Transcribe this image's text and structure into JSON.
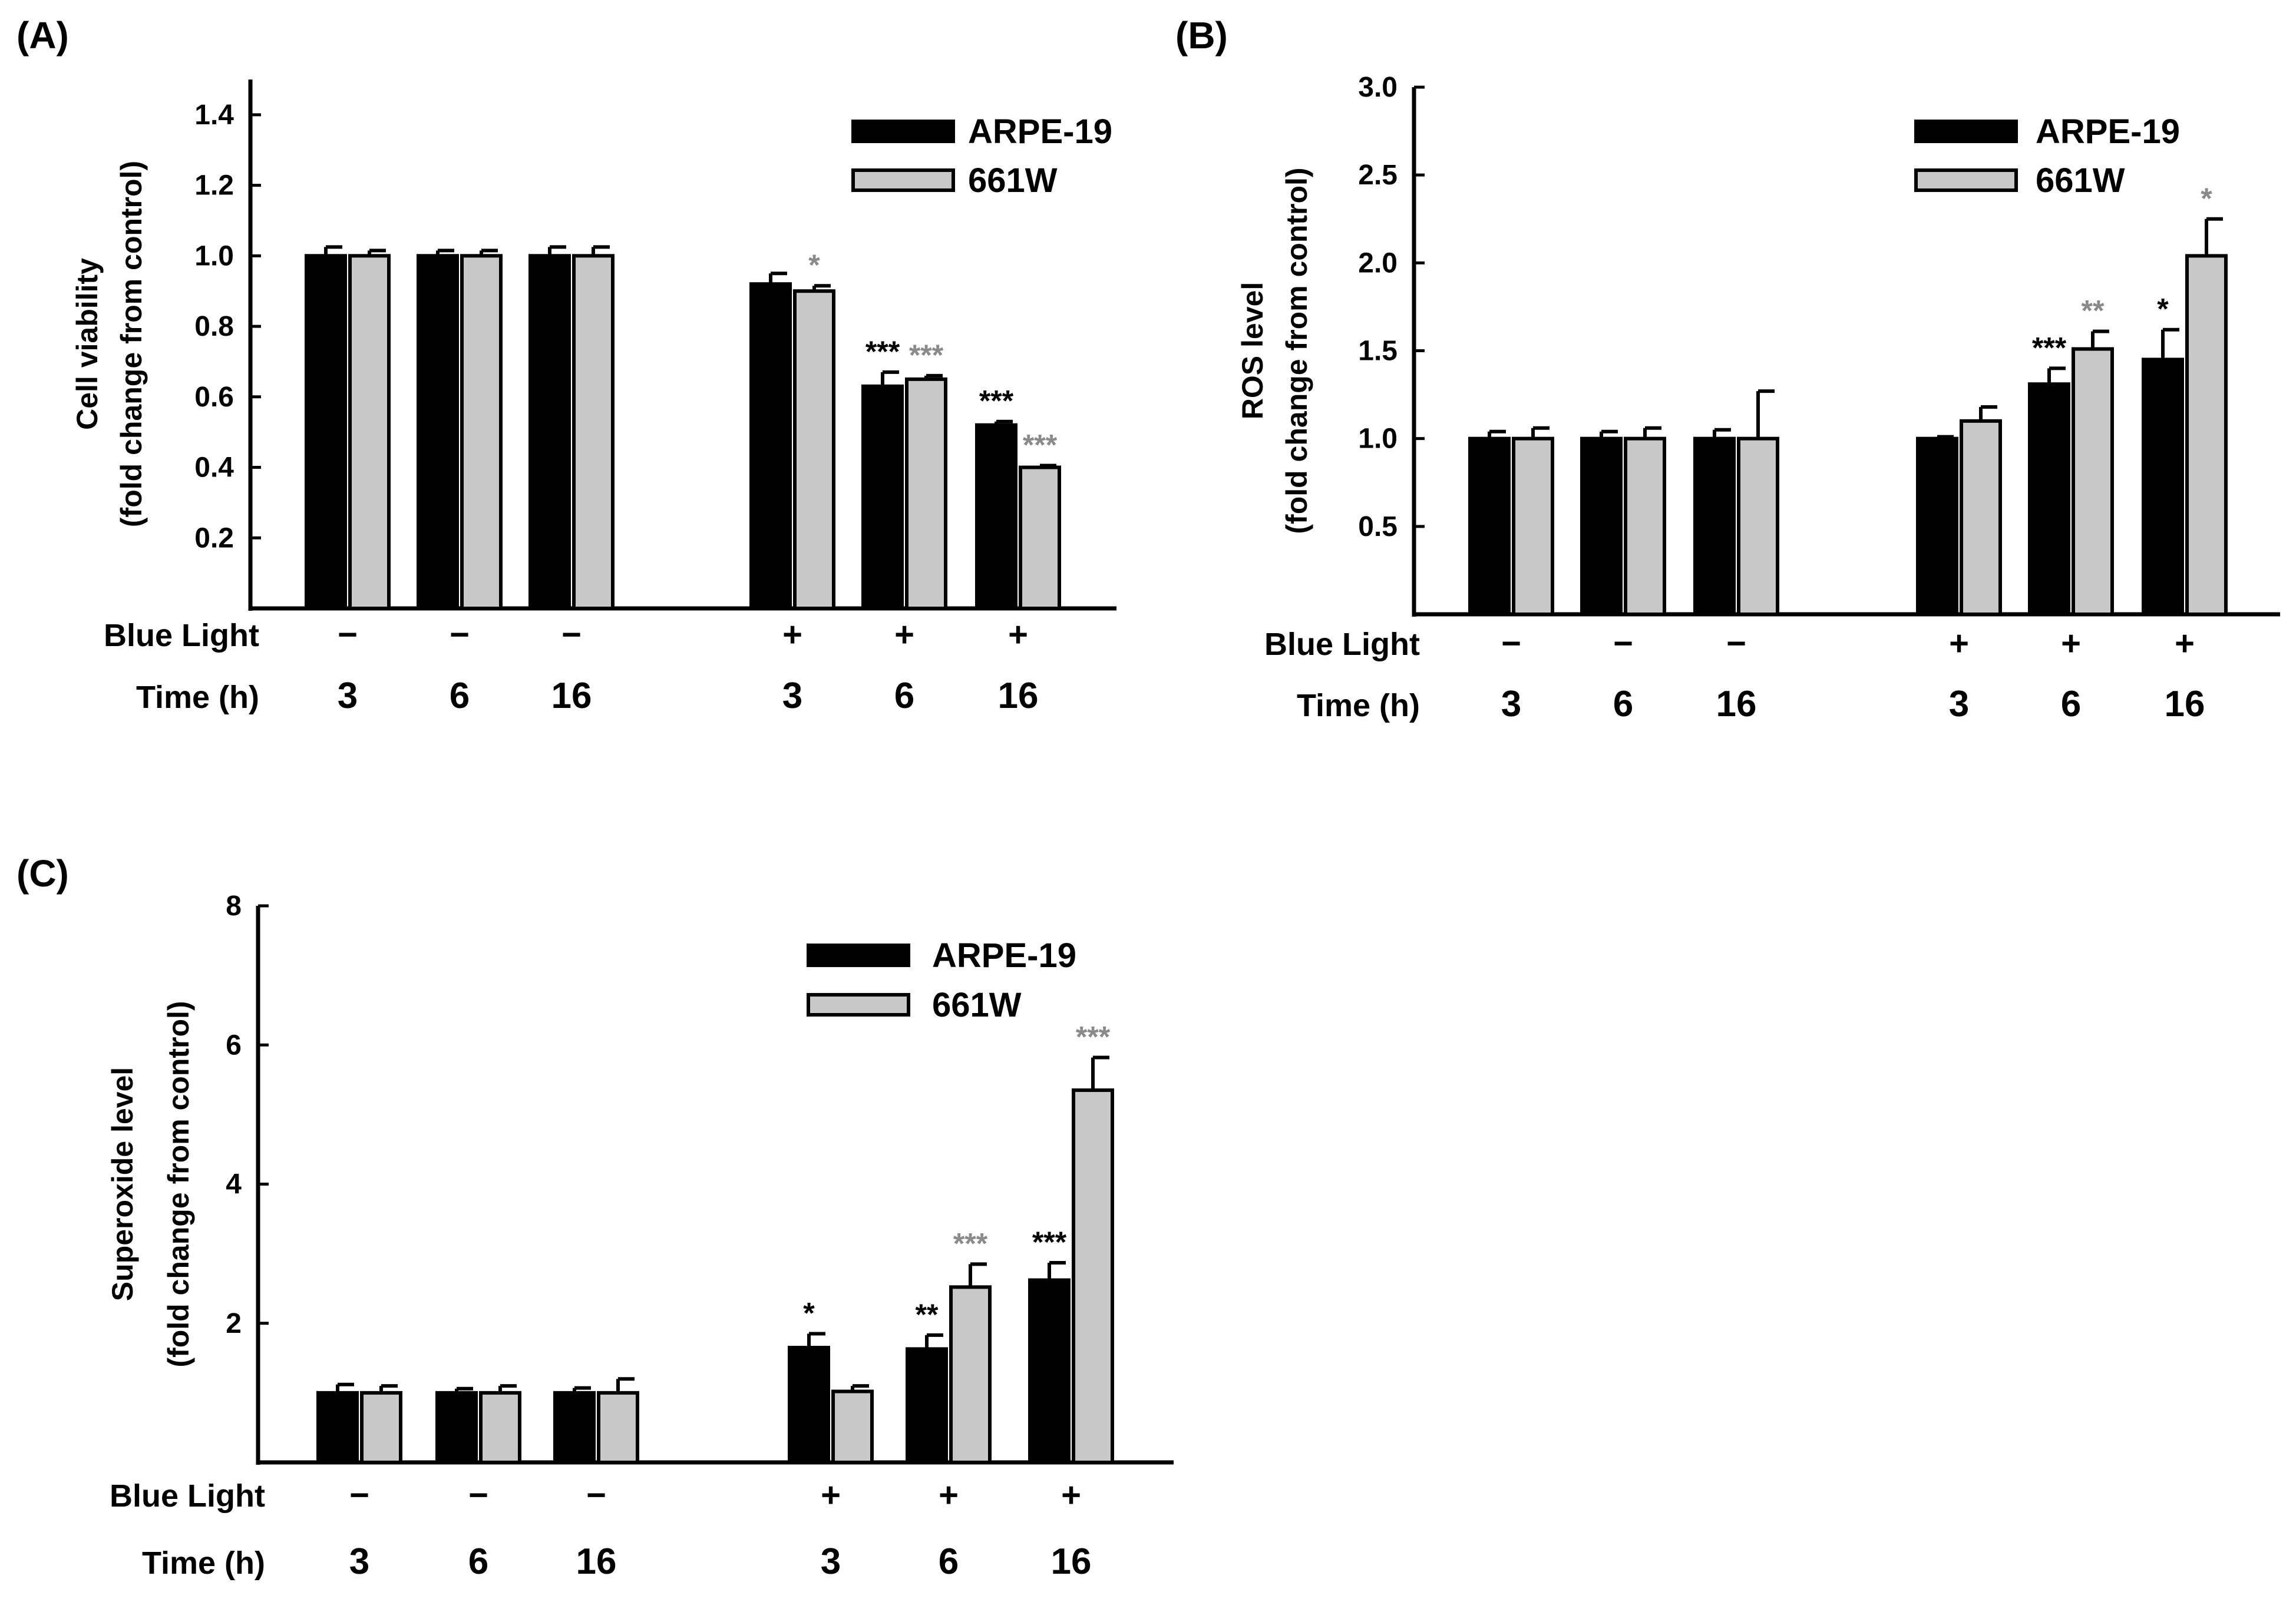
{
  "colors": {
    "arpe": "#000000",
    "w661": "#c8c8c8",
    "sig_arpe": "#000000",
    "sig_661w": "#8a8a8a",
    "axis": "#000000"
  },
  "chart_data": [
    {
      "id": "A",
      "panel_label": "(A)",
      "type": "bar",
      "ylabel_line1": "Cell viability",
      "ylabel_line2": "(fold change from control)",
      "ylim": [
        0,
        1.5
      ],
      "yticks": [
        0.2,
        0.4,
        0.6,
        0.8,
        1.0,
        1.2,
        1.4
      ],
      "ytick_labels": [
        "0.2",
        "0.4",
        "0.6",
        "0.8",
        "1.0",
        "1.2",
        "1.4"
      ],
      "legend": [
        "ARPE-19",
        "661W"
      ],
      "row_labels": [
        "Blue Light",
        "Time (h)"
      ],
      "blue_light": [
        "−",
        "−",
        "−",
        "+",
        "+",
        "+"
      ],
      "time": [
        "3",
        "6",
        "16",
        "3",
        "6",
        "16"
      ],
      "series": [
        {
          "name": "ARPE-19",
          "values": [
            1.0,
            1.0,
            1.0,
            0.92,
            0.63,
            0.52
          ],
          "errors": [
            0.025,
            0.015,
            0.025,
            0.03,
            0.04,
            0.01
          ],
          "sig": [
            "",
            "",
            "",
            "",
            "***",
            "***"
          ]
        },
        {
          "name": "661W",
          "values": [
            1.0,
            1.0,
            1.0,
            0.9,
            0.65,
            0.4
          ],
          "errors": [
            0.015,
            0.015,
            0.025,
            0.015,
            0.01,
            0.005
          ],
          "sig": [
            "",
            "",
            "",
            "*",
            "***",
            "***"
          ]
        }
      ]
    },
    {
      "id": "B",
      "panel_label": "(B)",
      "type": "bar",
      "ylabel_line1": "ROS level",
      "ylabel_line2": "(fold change from control)",
      "ylim": [
        0,
        3.0
      ],
      "yticks": [
        0.5,
        1.0,
        1.5,
        2.0,
        2.5,
        3.0
      ],
      "ytick_labels": [
        "0.5",
        "1.0",
        "1.5",
        "2.0",
        "2.5",
        "3.0"
      ],
      "legend": [
        "ARPE-19",
        "661W"
      ],
      "row_labels": [
        "Blue Light",
        "Time (h)"
      ],
      "blue_light": [
        "−",
        "−",
        "−",
        "+",
        "+",
        "+"
      ],
      "time": [
        "3",
        "6",
        "16",
        "3",
        "6",
        "16"
      ],
      "series": [
        {
          "name": "ARPE-19",
          "values": [
            1.0,
            1.0,
            1.0,
            1.0,
            1.31,
            1.45
          ],
          "errors": [
            0.04,
            0.04,
            0.05,
            0.01,
            0.09,
            0.17
          ],
          "sig": [
            "",
            "",
            "",
            "",
            "***",
            "*"
          ]
        },
        {
          "name": "661W",
          "values": [
            1.0,
            1.0,
            1.0,
            1.1,
            1.51,
            2.04
          ],
          "errors": [
            0.06,
            0.06,
            0.27,
            0.08,
            0.1,
            0.21
          ],
          "sig": [
            "",
            "",
            "",
            "",
            "**",
            "*"
          ]
        }
      ]
    },
    {
      "id": "C",
      "panel_label": "(C)",
      "type": "bar",
      "ylabel_line1": "Superoxide level",
      "ylabel_line2": "(fold change from control)",
      "ylim": [
        0,
        8
      ],
      "yticks": [
        2,
        4,
        6,
        8
      ],
      "ytick_labels": [
        "2",
        "4",
        "6",
        "8"
      ],
      "legend": [
        "ARPE-19",
        "661W"
      ],
      "row_labels": [
        "Blue Light",
        "Time (h)"
      ],
      "blue_light": [
        "−",
        "−",
        "−",
        "+",
        "+",
        "+"
      ],
      "time": [
        "3",
        "6",
        "16",
        "3",
        "6",
        "16"
      ],
      "series": [
        {
          "name": "ARPE-19",
          "values": [
            1.0,
            1.0,
            1.0,
            1.65,
            1.63,
            2.62
          ],
          "errors": [
            0.12,
            0.06,
            0.07,
            0.2,
            0.2,
            0.25
          ],
          "sig": [
            "",
            "",
            "",
            "*",
            "**",
            "***"
          ]
        },
        {
          "name": "661W",
          "values": [
            1.0,
            1.0,
            1.0,
            1.02,
            2.52,
            5.35
          ],
          "errors": [
            0.1,
            0.1,
            0.2,
            0.08,
            0.33,
            0.47
          ],
          "sig": [
            "",
            "",
            "",
            "",
            "***",
            "***"
          ]
        }
      ]
    }
  ]
}
